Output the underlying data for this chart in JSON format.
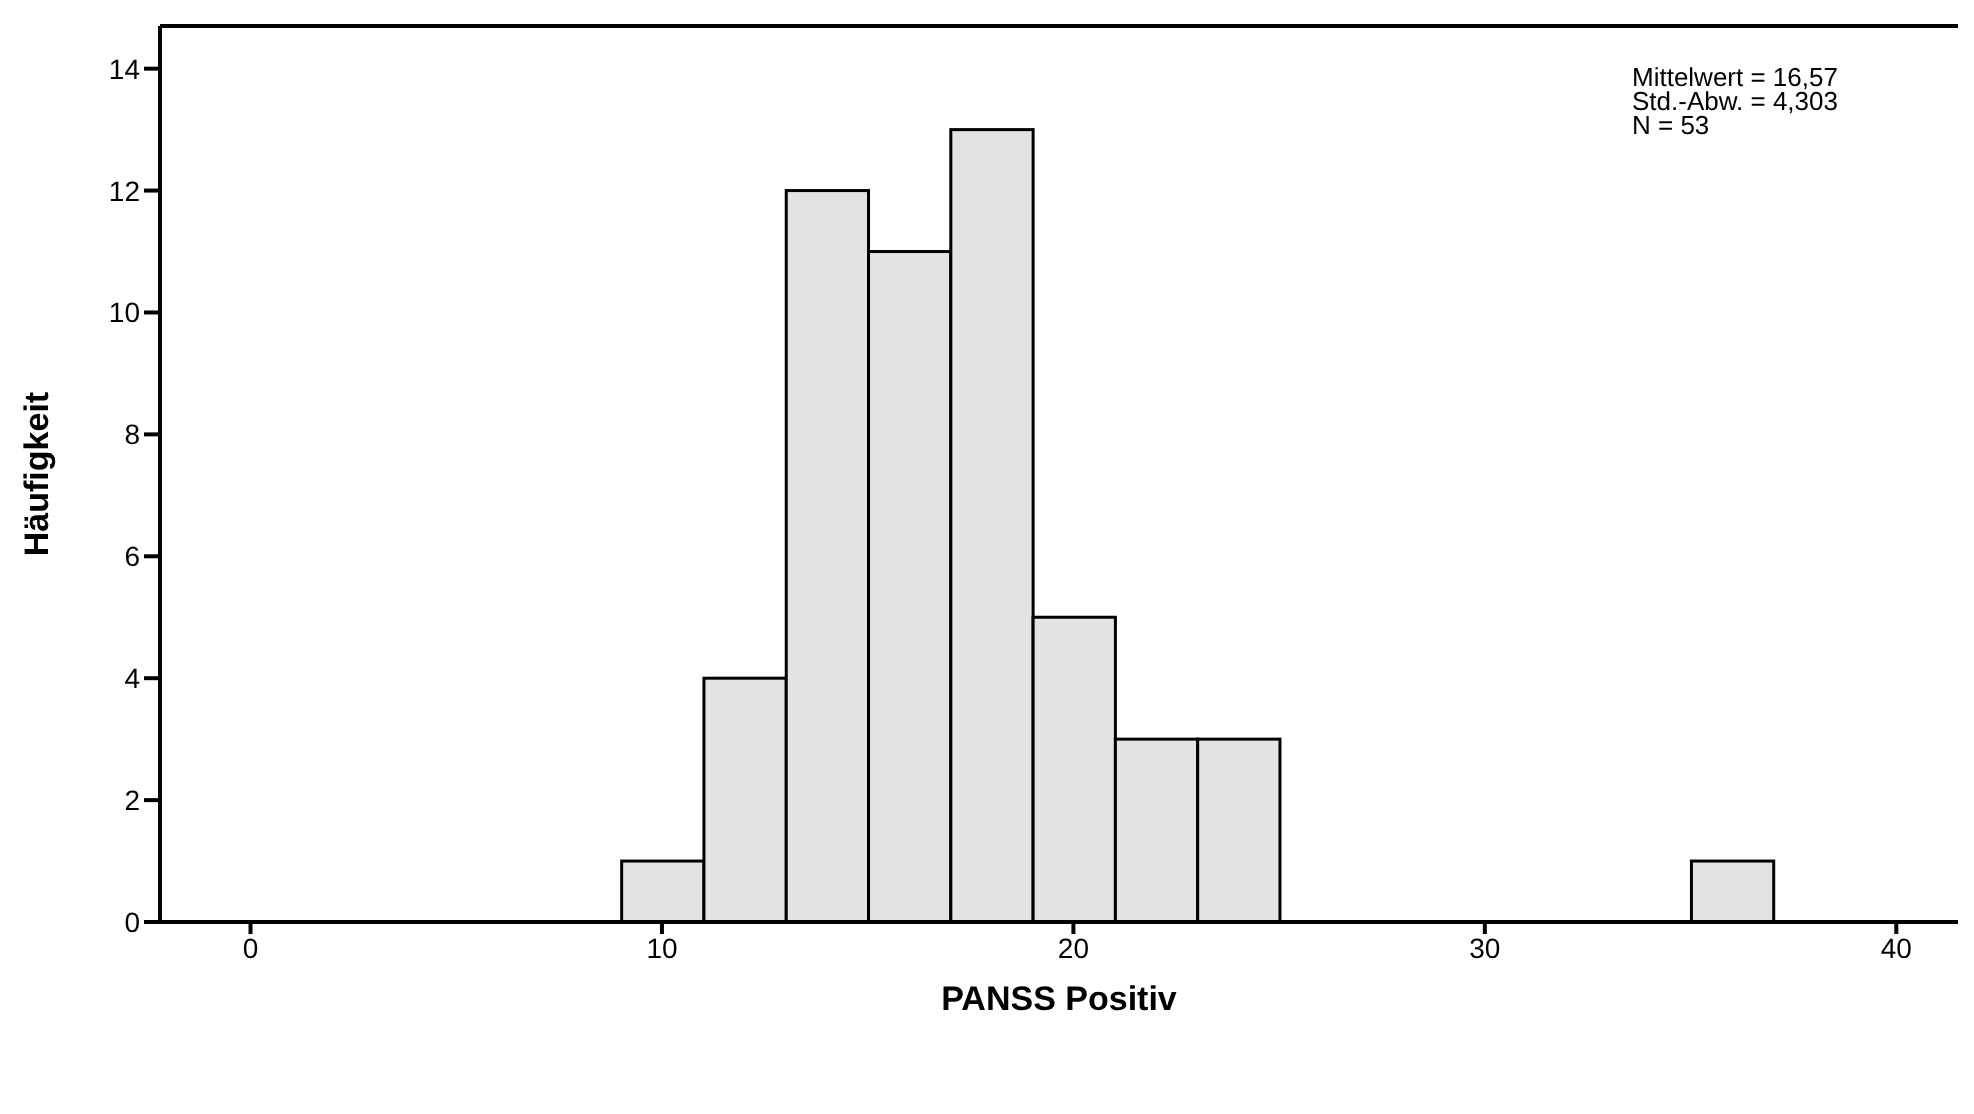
{
  "chart_data": {
    "type": "histogram",
    "xlabel": "PANSS Positiv",
    "ylabel": "Häufigkeit",
    "bins": [
      9,
      11,
      13,
      15,
      17,
      19,
      21,
      23,
      25,
      27,
      29,
      31,
      33,
      35,
      37
    ],
    "values": [
      1,
      4,
      12,
      11,
      13,
      5,
      3,
      3,
      0,
      0,
      0,
      0,
      0,
      1
    ],
    "color": "#e3e3e3",
    "xlim": [
      -2.2,
      41.5
    ],
    "xticks": [
      0,
      10,
      20,
      30,
      40
    ],
    "ylim": [
      0,
      14.7
    ],
    "yticks": [
      0,
      2,
      4,
      6,
      8,
      10,
      12,
      14
    ],
    "annotations": [
      "Mittelwert = 16,57",
      "Std.-Abw. = 4,303",
      "N = 53"
    ]
  }
}
